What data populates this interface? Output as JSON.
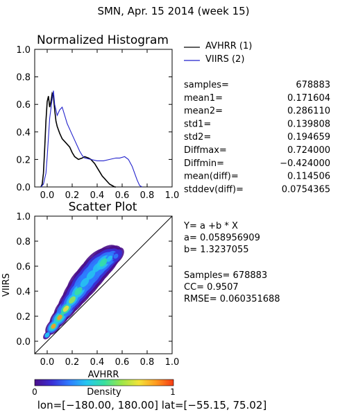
{
  "title": "SMN,  Apr. 15 2014 (week 15)",
  "footer": "lon=[−180.00, 180.00] lat=[−55.15, 75.02]",
  "colors": {
    "avhrr": "#000000",
    "viirs": "#2222cc",
    "background": "#ffffff"
  },
  "chart_data": [
    {
      "type": "line",
      "title": "Normalized Histogram",
      "xlim": [
        -0.1,
        1.0
      ],
      "ylim": [
        0.0,
        1.0
      ],
      "xticks": [
        "0.0",
        "0.2",
        "0.4",
        "0.6",
        "0.8",
        "1.0"
      ],
      "yticks": [
        "0.0",
        "0.2",
        "0.4",
        "0.6",
        "0.8",
        "1.0"
      ],
      "legend": "top-right, outside plot",
      "series": [
        {
          "name": "AVHRR (1)",
          "x": [
            -0.05,
            -0.04,
            -0.03,
            -0.02,
            -0.01,
            0.0,
            0.01,
            0.02,
            0.03,
            0.04,
            0.05,
            0.06,
            0.07,
            0.08,
            0.1,
            0.12,
            0.15,
            0.18,
            0.2,
            0.22,
            0.25,
            0.28,
            0.3,
            0.33,
            0.35,
            0.38,
            0.4,
            0.42,
            0.44,
            0.46,
            0.48,
            0.5,
            0.52,
            0.54,
            0.55
          ],
          "values": [
            0.0,
            0.02,
            0.1,
            0.28,
            0.48,
            0.62,
            0.66,
            0.58,
            0.62,
            0.68,
            0.66,
            0.56,
            0.48,
            0.44,
            0.39,
            0.35,
            0.32,
            0.29,
            0.25,
            0.22,
            0.2,
            0.21,
            0.22,
            0.21,
            0.2,
            0.17,
            0.14,
            0.11,
            0.08,
            0.06,
            0.04,
            0.02,
            0.01,
            0.0,
            0.0
          ]
        },
        {
          "name": "VIIRS (2)",
          "x": [
            -0.05,
            -0.03,
            -0.01,
            0.0,
            0.02,
            0.04,
            0.05,
            0.06,
            0.08,
            0.1,
            0.12,
            0.14,
            0.16,
            0.18,
            0.2,
            0.22,
            0.24,
            0.26,
            0.28,
            0.3,
            0.35,
            0.4,
            0.45,
            0.5,
            0.55,
            0.58,
            0.62,
            0.65,
            0.68,
            0.7,
            0.72,
            0.74,
            0.76
          ],
          "values": [
            0.0,
            0.02,
            0.1,
            0.22,
            0.5,
            0.64,
            0.7,
            0.6,
            0.52,
            0.56,
            0.58,
            0.52,
            0.46,
            0.42,
            0.38,
            0.34,
            0.3,
            0.26,
            0.23,
            0.21,
            0.2,
            0.19,
            0.19,
            0.2,
            0.21,
            0.21,
            0.22,
            0.2,
            0.15,
            0.1,
            0.05,
            0.01,
            0.0
          ]
        }
      ],
      "stats": [
        {
          "label": "samples=",
          "value": "678883"
        },
        {
          "label": "mean1=",
          "value": "0.171604"
        },
        {
          "label": "mean2=",
          "value": "0.286110"
        },
        {
          "label": "std1=",
          "value": "0.139808"
        },
        {
          "label": "std2=",
          "value": "0.194659"
        },
        {
          "label": "Diffmax=",
          "value": "0.724000"
        },
        {
          "label": "Diffmin=",
          "value": "−0.424000"
        },
        {
          "label": "mean(diff)=",
          "value": "0.114506"
        },
        {
          "label": "stddev(diff)=",
          "value": "0.0754365"
        }
      ]
    },
    {
      "type": "heatmap",
      "title": "Scatter Plot",
      "xlabel": "AVHRR",
      "ylabel": "VIIRS",
      "xlim": [
        -0.1,
        1.0
      ],
      "ylim": [
        -0.1,
        1.0
      ],
      "xticks": [
        "0.0",
        "0.2",
        "0.4",
        "0.6",
        "0.8",
        "1.0"
      ],
      "yticks": [
        "0.0",
        "0.2",
        "0.4",
        "0.6",
        "0.8",
        "1.0"
      ],
      "identity_line": true,
      "density_ridge": {
        "x": [
          0.0,
          0.05,
          0.1,
          0.15,
          0.2,
          0.25,
          0.3,
          0.35,
          0.4,
          0.45,
          0.5,
          0.55
        ],
        "y": [
          0.05,
          0.12,
          0.19,
          0.26,
          0.33,
          0.4,
          0.47,
          0.53,
          0.59,
          0.63,
          0.66,
          0.68
        ],
        "spread": [
          0.02,
          0.04,
          0.05,
          0.06,
          0.07,
          0.08,
          0.09,
          0.09,
          0.09,
          0.08,
          0.06,
          0.04
        ],
        "peak_density": [
          0.35,
          0.9,
          0.85,
          0.7,
          0.55,
          0.4,
          0.3,
          0.28,
          0.35,
          0.4,
          0.3,
          0.12
        ]
      },
      "fit_lines": [
        "Y= a +b * X",
        "a= 0.058956909",
        "b= 1.3237055"
      ],
      "stats_lines": [
        "Samples= 678883",
        "CC=  0.9507",
        "RMSE= 0.060351688"
      ]
    }
  ],
  "colorbar": {
    "label": "Density",
    "min_label": "0",
    "max_label": "1",
    "stops": [
      "#4b0f8a",
      "#3a2fd6",
      "#2e7dff",
      "#26c7f0",
      "#38e0a0",
      "#9be64a",
      "#f2e33a",
      "#ff9a1f",
      "#f53a14"
    ]
  }
}
